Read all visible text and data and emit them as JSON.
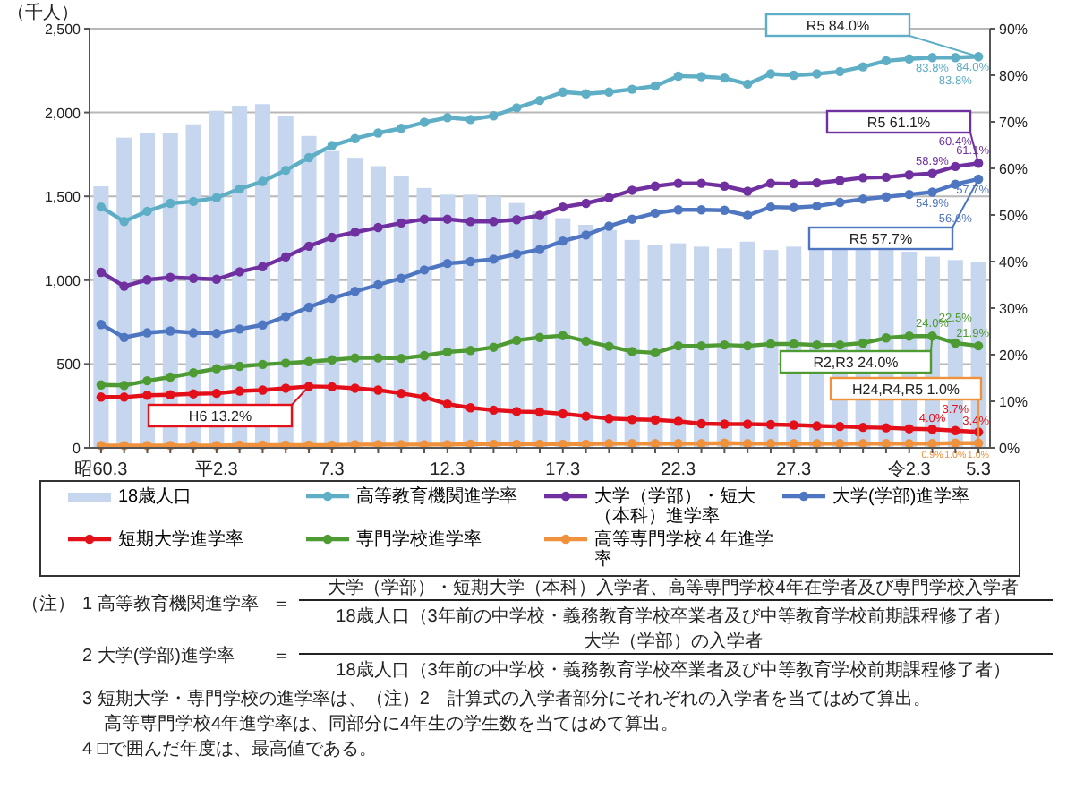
{
  "chart_data": {
    "type": "bar",
    "ylabel": "（千人）",
    "categories": [
      "昭60.3",
      null,
      null,
      null,
      null,
      "平2.3",
      null,
      null,
      null,
      null,
      "7.3",
      null,
      null,
      null,
      null,
      "12.3",
      null,
      null,
      null,
      null,
      "17.3",
      null,
      null,
      null,
      null,
      "22.3",
      null,
      null,
      null,
      null,
      "27.3",
      null,
      null,
      null,
      null,
      "令2.3",
      null,
      null,
      "5.3"
    ],
    "ylim": [
      0,
      2500
    ],
    "yticks": [
      0,
      500,
      {
        "value": 1000,
        "label": "1,000"
      },
      {
        "value": 1500,
        "label": "1,500"
      },
      {
        "value": 2000,
        "label": "2,000"
      },
      {
        "value": 2500,
        "label": "2,500"
      }
    ],
    "y2lim": [
      0,
      90
    ],
    "y2ticks": [
      {
        "value": 0,
        "label": "0%"
      },
      {
        "value": 10,
        "label": "10%"
      },
      {
        "value": 20,
        "label": "20%"
      },
      {
        "value": 30,
        "label": "30%"
      },
      {
        "value": 40,
        "label": "40%"
      },
      {
        "value": 50,
        "label": "50%"
      },
      {
        "value": 60,
        "label": "60%"
      },
      {
        "value": 70,
        "label": "70%"
      },
      {
        "value": 80,
        "label": "80%"
      },
      {
        "value": 90,
        "label": "90%"
      }
    ],
    "grid": "y",
    "legend": "bottom",
    "marker": "circle",
    "line_style": "solid",
    "series": [
      {
        "name": "18歳人口",
        "color": "#c6d6ee",
        "values": [
          1560,
          1850,
          1880,
          1880,
          1930,
          2010,
          2040,
          2050,
          1980,
          1860,
          1770,
          1730,
          1680,
          1620,
          1550,
          1510,
          1510,
          1500,
          1460,
          1410,
          1370,
          1330,
          1300,
          1240,
          1210,
          1220,
          1200,
          1190,
          1230,
          1180,
          1200,
          1190,
          1200,
          1180,
          1180,
          1170,
          1140,
          1120,
          1110
        ]
      },
      {
        "name": "高等教育機関進学率",
        "type": "line",
        "axis": "y2",
        "color": "#5eaec6",
        "values": [
          51.7,
          48.6,
          50.8,
          52.5,
          52.9,
          53.7,
          55.6,
          57.2,
          59.6,
          62.3,
          64.9,
          66.4,
          67.6,
          68.6,
          69.9,
          70.9,
          70.5,
          71.3,
          73.0,
          74.6,
          76.4,
          76.0,
          76.4,
          77.0,
          77.7,
          79.8,
          79.7,
          79.4,
          78.1,
          80.3,
          80.0,
          80.3,
          80.8,
          81.8,
          83.1,
          83.5,
          83.8,
          83.8,
          84.0
        ],
        "value_labels": [
          null,
          null,
          null,
          null,
          null,
          null,
          null,
          null,
          null,
          null,
          null,
          null,
          null,
          null,
          null,
          null,
          null,
          null,
          null,
          null,
          null,
          null,
          null,
          null,
          null,
          null,
          null,
          null,
          null,
          null,
          null,
          null,
          null,
          null,
          null,
          null,
          "83.8%",
          "83.8%",
          "84.0%"
        ]
      },
      {
        "name": "大学（学部）・短大（本科）進学率",
        "type": "line",
        "axis": "y2",
        "color": "#7030a0",
        "values": [
          37.7,
          34.7,
          36.1,
          36.6,
          36.4,
          36.2,
          37.8,
          38.9,
          41.0,
          43.3,
          45.2,
          46.3,
          47.3,
          48.3,
          49.1,
          49.1,
          48.6,
          48.6,
          49.0,
          49.9,
          51.7,
          52.5,
          53.7,
          55.3,
          56.2,
          56.8,
          56.8,
          56.2,
          55.1,
          56.8,
          56.7,
          56.9,
          57.4,
          58.0,
          58.1,
          58.6,
          58.9,
          60.4,
          61.1
        ],
        "value_labels": [
          null,
          null,
          null,
          null,
          null,
          null,
          null,
          null,
          null,
          null,
          null,
          null,
          null,
          null,
          null,
          null,
          null,
          null,
          null,
          null,
          null,
          null,
          null,
          null,
          null,
          null,
          null,
          null,
          null,
          null,
          null,
          null,
          null,
          null,
          null,
          null,
          "58.9%",
          "60.4%",
          "61.1%"
        ]
      },
      {
        "name": "大学(学部)進学率",
        "type": "line",
        "axis": "y2",
        "color": "#4f76c0",
        "values": [
          26.5,
          23.7,
          24.7,
          25.1,
          24.7,
          24.6,
          25.5,
          26.4,
          28.2,
          30.2,
          32.1,
          33.6,
          35.0,
          36.4,
          38.2,
          39.6,
          40.0,
          40.5,
          41.6,
          42.6,
          44.4,
          45.7,
          47.6,
          49.1,
          50.4,
          51.1,
          51.1,
          51.0,
          49.9,
          51.7,
          51.6,
          51.9,
          52.7,
          53.4,
          53.9,
          54.4,
          54.9,
          56.6,
          57.7
        ],
        "value_labels": [
          null,
          null,
          null,
          null,
          null,
          null,
          null,
          null,
          null,
          null,
          null,
          null,
          null,
          null,
          null,
          null,
          null,
          null,
          null,
          null,
          null,
          null,
          null,
          null,
          null,
          null,
          null,
          null,
          null,
          null,
          null,
          null,
          null,
          null,
          null,
          null,
          "54.9%",
          "56.6%",
          "57.7%"
        ]
      },
      {
        "name": "短期大学進学率",
        "type": "line",
        "axis": "y2",
        "color": "#e3101a",
        "values": [
          10.9,
          10.9,
          11.3,
          11.4,
          11.6,
          11.7,
          12.2,
          12.4,
          12.8,
          13.2,
          13.1,
          12.8,
          12.4,
          11.7,
          10.9,
          9.4,
          8.6,
          8.1,
          7.8,
          7.7,
          7.3,
          6.8,
          6.3,
          6.1,
          6.0,
          5.7,
          5.2,
          5.1,
          5.1,
          5.0,
          4.9,
          4.7,
          4.6,
          4.4,
          4.3,
          4.1,
          4.0,
          3.7,
          3.4
        ],
        "value_labels": [
          null,
          null,
          null,
          null,
          null,
          null,
          null,
          null,
          null,
          null,
          null,
          null,
          null,
          null,
          null,
          null,
          null,
          null,
          null,
          null,
          null,
          null,
          null,
          null,
          null,
          null,
          null,
          null,
          null,
          null,
          null,
          null,
          null,
          null,
          null,
          null,
          "4.0%",
          "3.7%",
          "3.4%"
        ]
      },
      {
        "name": "専門学校進学率",
        "type": "line",
        "axis": "y2",
        "color": "#4e9a33",
        "values": [
          13.5,
          13.4,
          14.4,
          15.2,
          16.1,
          17.0,
          17.5,
          17.9,
          18.2,
          18.5,
          18.9,
          19.3,
          19.3,
          19.2,
          19.8,
          20.6,
          20.9,
          21.6,
          23.1,
          23.7,
          24.1,
          22.9,
          21.8,
          20.7,
          20.4,
          21.9,
          21.9,
          22.1,
          21.9,
          22.3,
          22.3,
          22.1,
          22.1,
          22.5,
          23.6,
          24.0,
          24.0,
          22.5,
          21.9
        ],
        "value_labels": [
          null,
          null,
          null,
          null,
          null,
          null,
          null,
          null,
          null,
          null,
          null,
          null,
          null,
          null,
          null,
          null,
          null,
          null,
          null,
          null,
          null,
          null,
          null,
          null,
          null,
          null,
          null,
          null,
          null,
          null,
          null,
          null,
          null,
          null,
          null,
          null,
          "24.0%",
          "22.5%",
          "21.9%"
        ]
      },
      {
        "name": "高等専門学校４年進学率",
        "type": "line",
        "axis": "y2",
        "color": "#f0913b",
        "values": [
          0.5,
          0.5,
          0.5,
          0.5,
          0.5,
          0.5,
          0.6,
          0.6,
          0.6,
          0.6,
          0.6,
          0.7,
          0.7,
          0.7,
          0.7,
          0.7,
          0.8,
          0.8,
          0.8,
          0.8,
          0.8,
          0.8,
          0.9,
          0.9,
          0.9,
          0.9,
          0.9,
          1.0,
          0.9,
          0.9,
          0.9,
          0.9,
          0.9,
          0.9,
          0.9,
          0.9,
          0.9,
          1.0,
          1.0
        ],
        "value_labels": [
          null,
          null,
          null,
          null,
          null,
          null,
          null,
          null,
          null,
          null,
          null,
          null,
          null,
          null,
          null,
          null,
          null,
          null,
          null,
          null,
          null,
          null,
          null,
          null,
          null,
          null,
          null,
          null,
          null,
          null,
          null,
          null,
          null,
          null,
          null,
          null,
          "0.9%",
          "1.0%",
          "1.0%"
        ]
      }
    ],
    "annotations": [
      "（注）",
      "1 高等教育機関進学率",
      "＝",
      "大学（学部）・短期大学（本科）入学者、高等専門学校4年在学者及び専門学校入学者",
      "18歳人口（3年前の中学校・義務教育学校卒業者及び中等教育学校前期課程修了者）",
      "2 大学(学部)進学率",
      "＝",
      "大学（学部）の入学者",
      "18歳人口（3年前の中学校・義務教育学校卒業者及び中等教育学校前期課程修了者）",
      "3 短期大学・専門学校の進学率は、（注）2　計算式の入学者部分にそれぞれの入学者を当てはめて算出。",
      "高等専門学校4年進学率は、同部分に4年生の学生数を当てはめて算出。",
      "4 □で囲んだ年度は、最高値である。",
      "R5  84.0%",
      "R5  61.1%",
      "R5  57.7%",
      "R2,R3  24.0%",
      "H24,R4,R5  1.0%",
      "H6  13.2%"
    ]
  }
}
